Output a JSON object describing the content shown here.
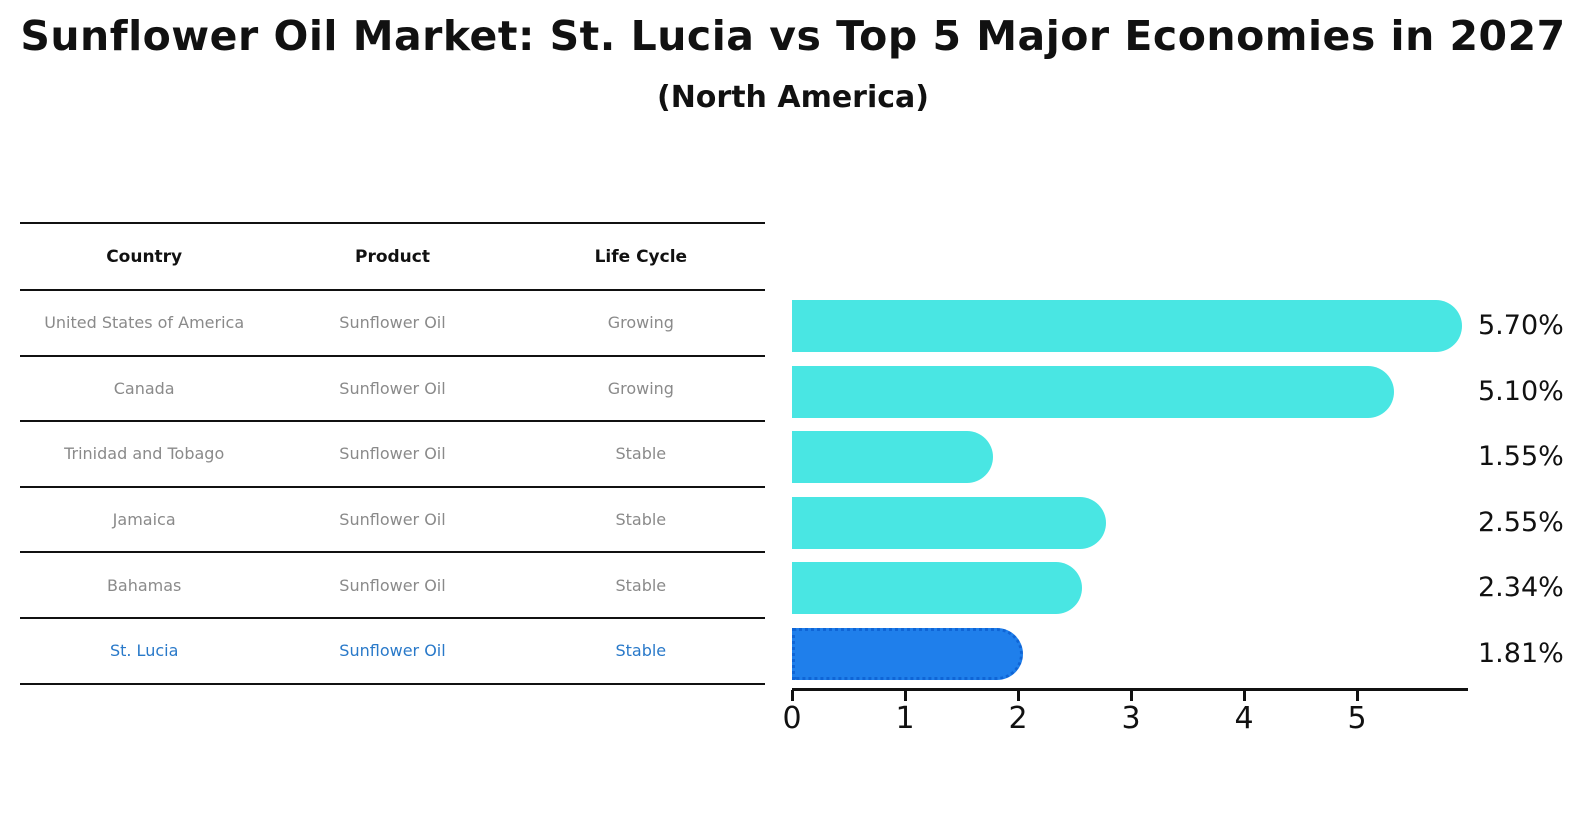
{
  "title": "Sunflower Oil Market: St. Lucia vs Top 5 Major Economies in 2027",
  "subtitle": "(North America)",
  "table": {
    "columns": [
      "Country",
      "Product",
      "Life Cycle"
    ],
    "rows": [
      {
        "country": "United States of America",
        "product": "Sunflower Oil",
        "life_cycle": "Growing",
        "highlight": false
      },
      {
        "country": "Canada",
        "product": "Sunflower Oil",
        "life_cycle": "Growing",
        "highlight": false
      },
      {
        "country": "Trinidad and Tobago",
        "product": "Sunflower Oil",
        "life_cycle": "Stable",
        "highlight": false
      },
      {
        "country": "Jamaica",
        "product": "Sunflower Oil",
        "life_cycle": "Stable",
        "highlight": false
      },
      {
        "country": "Bahamas",
        "product": "Sunflower Oil",
        "life_cycle": "Stable",
        "highlight": false
      },
      {
        "country": "St. Lucia",
        "product": "Sunflower Oil",
        "life_cycle": "Stable",
        "highlight": true
      }
    ]
  },
  "chart_data": {
    "type": "bar",
    "orientation": "horizontal",
    "title": "Sunflower Oil Market: St. Lucia vs Top 5 Major Economies in 2027",
    "subtitle": "(North America)",
    "categories": [
      "United States of America",
      "Canada",
      "Trinidad and Tobago",
      "Jamaica",
      "Bahamas",
      "St. Lucia"
    ],
    "values": [
      5.7,
      5.1,
      1.55,
      2.55,
      2.34,
      1.81
    ],
    "value_labels": [
      "5.70%",
      "5.10%",
      "1.55%",
      "2.55%",
      "2.34%",
      "1.81%"
    ],
    "xlabel": "",
    "ylabel": "",
    "xlim": [
      0,
      6
    ],
    "xticks": [
      0,
      1,
      2,
      3,
      4,
      5
    ],
    "grid": false,
    "legend": false,
    "highlight_index": 5,
    "highlight_category": "St. Lucia"
  },
  "colors": {
    "bar": "#49E6E3",
    "bar_highlight": "#1F7FEB",
    "bar_highlight_border": "#0F65D6",
    "highlight_text": "#2979C9",
    "cell_text": "#8a8a8a",
    "text": "#111111"
  }
}
